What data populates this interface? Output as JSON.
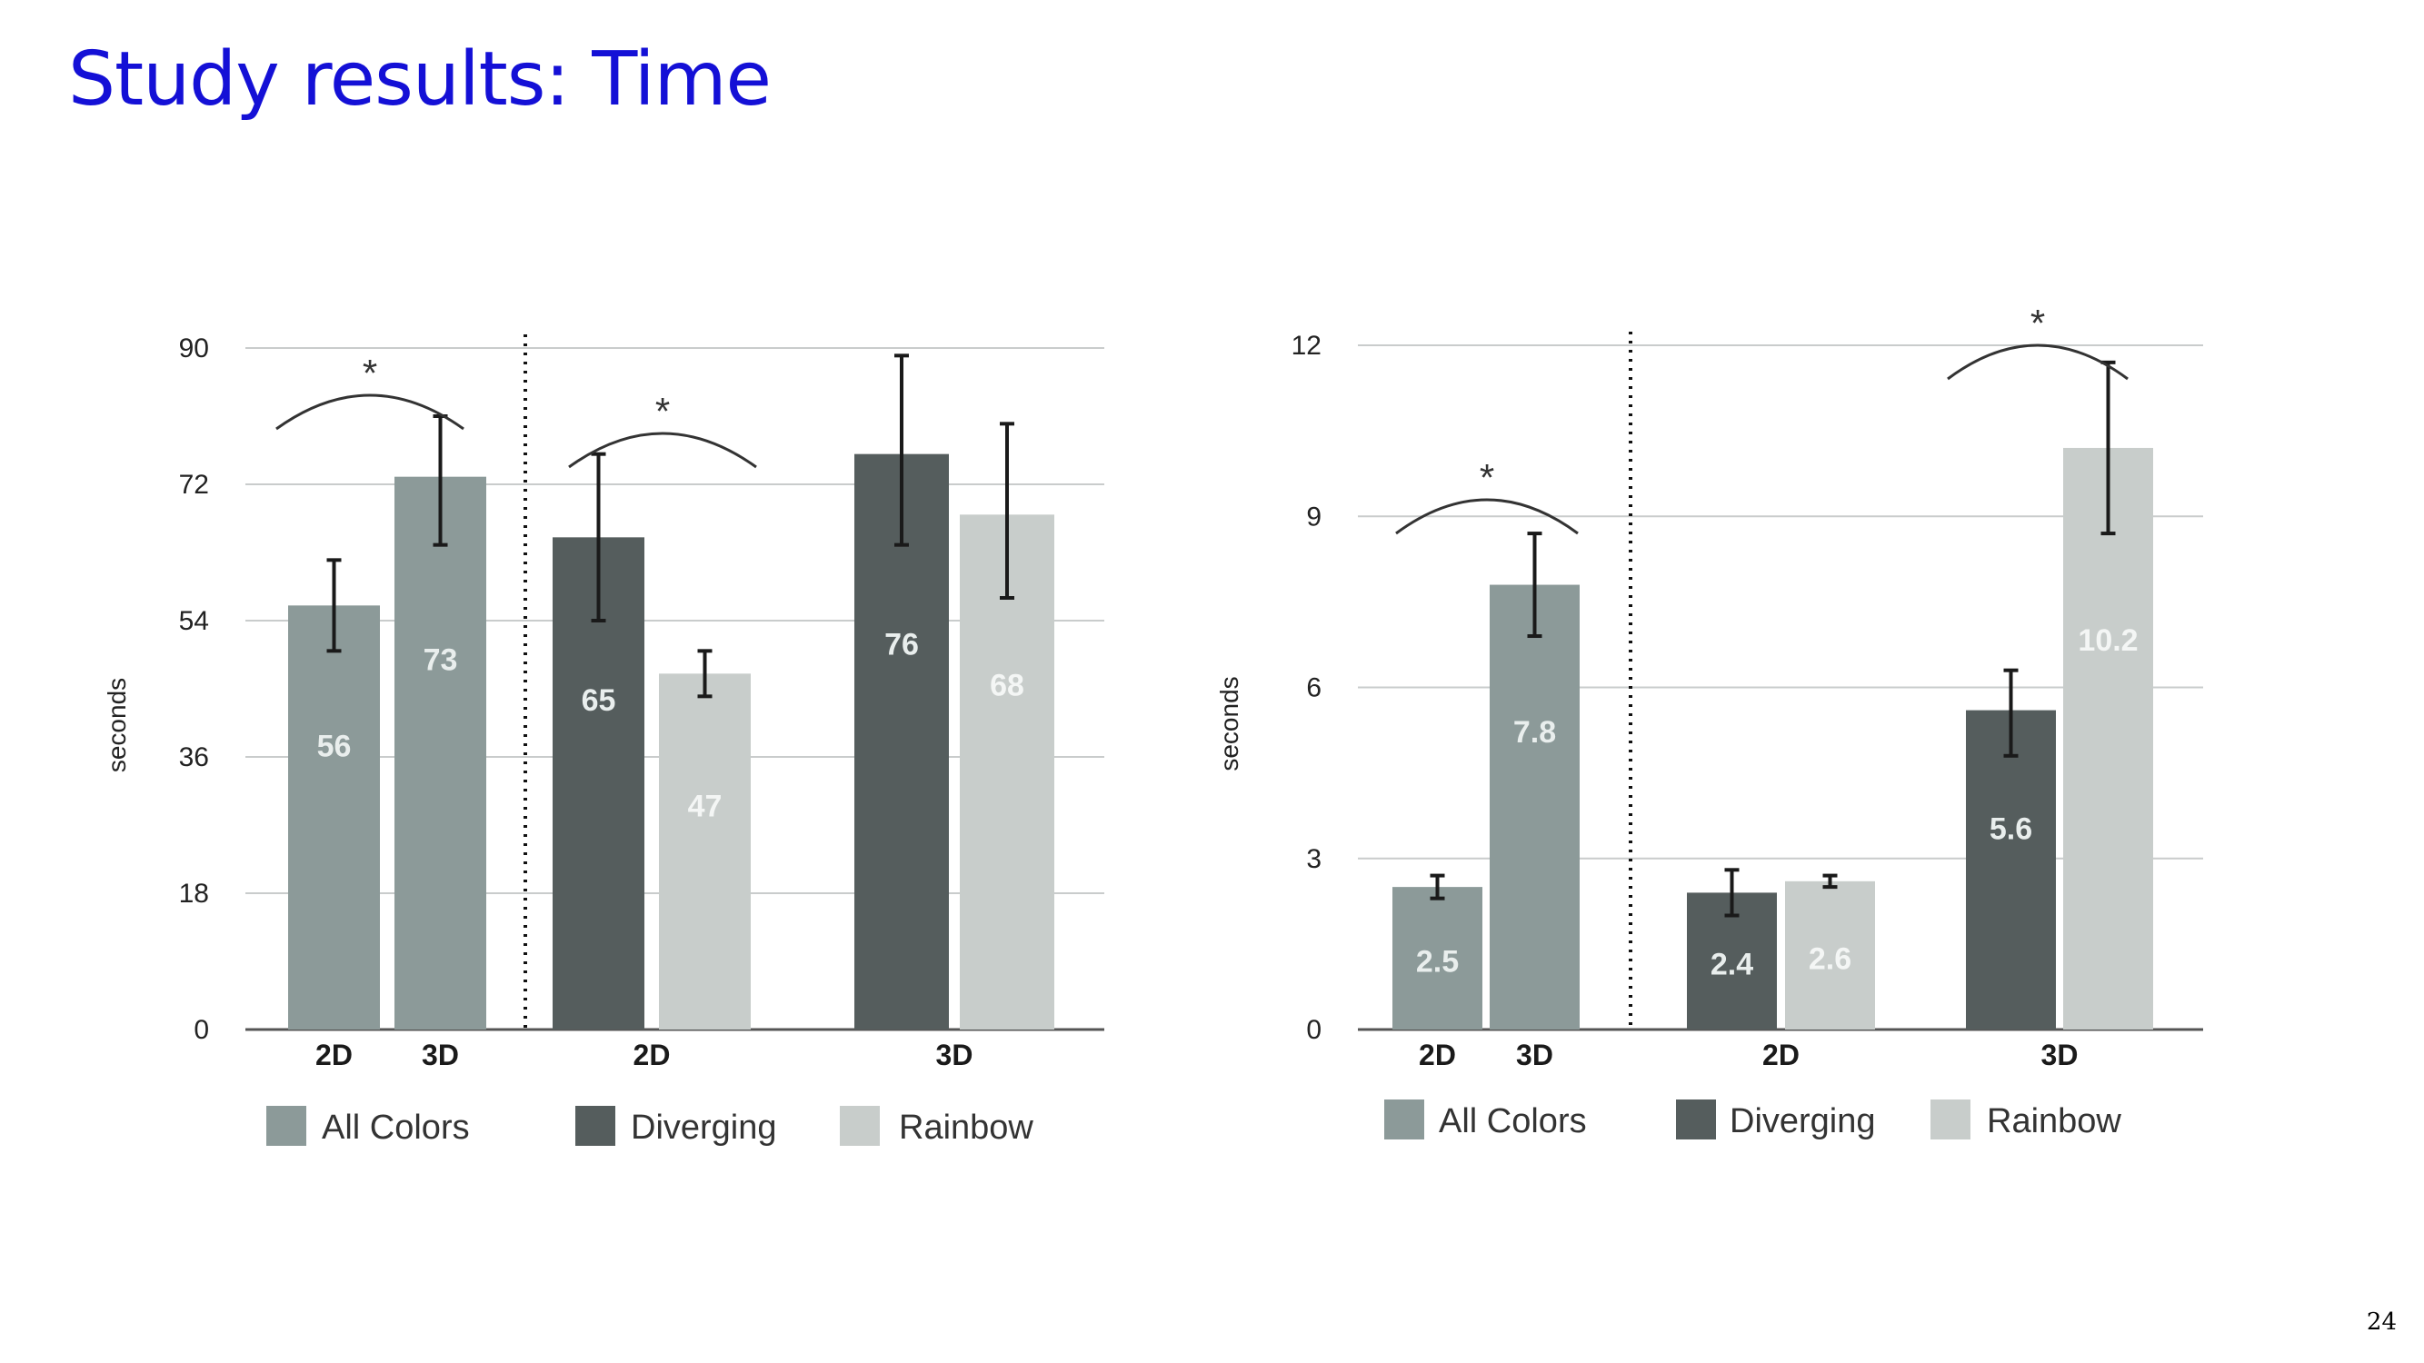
{
  "title": "Study results: Time",
  "page_number": "24",
  "chart_data": [
    {
      "type": "bar",
      "ylabel": "seconds",
      "ylim": [
        0,
        90
      ],
      "yticks": [
        0,
        18,
        36,
        54,
        72,
        90
      ],
      "groups": [
        {
          "label": "",
          "bars": [
            {
              "x": "2D",
              "series": "All Colors",
              "value": 56,
              "label": "56",
              "err": [
                50,
                62
              ]
            },
            {
              "x": "3D",
              "series": "All Colors",
              "value": 73,
              "label": "73",
              "err": [
                64,
                81
              ]
            }
          ]
        },
        {
          "label": "2D",
          "bars": [
            {
              "series": "Diverging",
              "value": 65,
              "label": "65",
              "err": [
                54,
                76
              ]
            },
            {
              "series": "Rainbow",
              "value": 47,
              "label": "47",
              "err": [
                44,
                50
              ]
            }
          ]
        },
        {
          "label": "3D",
          "bars": [
            {
              "series": "Diverging",
              "value": 76,
              "label": "76",
              "err": [
                64,
                89
              ]
            },
            {
              "series": "Rainbow",
              "value": 68,
              "label": "68",
              "err": [
                57,
                80
              ]
            }
          ]
        }
      ],
      "significance": [
        {
          "group": 0,
          "label": "*"
        },
        {
          "group": 1,
          "label": "*"
        }
      ],
      "legend": [
        "All Colors",
        "Diverging",
        "Rainbow"
      ],
      "colors": {
        "All Colors": "#8c9a99",
        "Diverging": "#555d5d",
        "Rainbow": "#c8cdcb"
      },
      "grid": true
    },
    {
      "type": "bar",
      "ylabel": "seconds",
      "ylim": [
        0,
        12
      ],
      "yticks": [
        0,
        3,
        6,
        9,
        12
      ],
      "groups": [
        {
          "label": "",
          "bars": [
            {
              "x": "2D",
              "series": "All Colors",
              "value": 2.5,
              "label": "2.5",
              "err": [
                2.3,
                2.7
              ]
            },
            {
              "x": "3D",
              "series": "All Colors",
              "value": 7.8,
              "label": "7.8",
              "err": [
                6.9,
                8.7
              ]
            }
          ]
        },
        {
          "label": "2D",
          "bars": [
            {
              "series": "Diverging",
              "value": 2.4,
              "label": "2.4",
              "err": [
                2.0,
                2.8
              ]
            },
            {
              "series": "Rainbow",
              "value": 2.6,
              "label": "2.6",
              "err": [
                2.5,
                2.7
              ]
            }
          ]
        },
        {
          "label": "3D",
          "bars": [
            {
              "series": "Diverging",
              "value": 5.6,
              "label": "5.6",
              "err": [
                4.8,
                6.3
              ]
            },
            {
              "series": "Rainbow",
              "value": 10.2,
              "label": "10.2",
              "err": [
                8.7,
                11.7
              ]
            }
          ]
        }
      ],
      "significance": [
        {
          "group": 0,
          "label": "*"
        },
        {
          "group": 2,
          "label": "*"
        }
      ],
      "legend": [
        "All Colors",
        "Diverging",
        "Rainbow"
      ],
      "colors": {
        "All Colors": "#8c9a99",
        "Diverging": "#555d5d",
        "Rainbow": "#c8cdcb"
      },
      "grid": true
    }
  ]
}
